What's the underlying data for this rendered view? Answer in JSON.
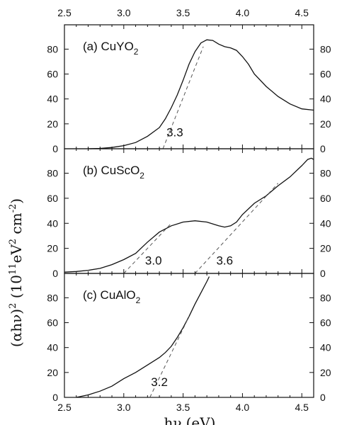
{
  "chart_data": {
    "type": "line",
    "xlabel_main": "hν",
    "xlabel_unit": "(eV)",
    "ylabel_prefix": "(αhν)",
    "ylabel_exp": "2",
    "ylabel_mid": " (10",
    "ylabel_exp2": "11",
    "ylabel_mid2": "eV",
    "ylabel_exp3": "2",
    "ylabel_mid3": " cm",
    "ylabel_exp4": "-2",
    "ylabel_end": ")",
    "xlim": [
      2.5,
      4.6
    ],
    "x_ticks": [
      "2.5",
      "3.0",
      "3.5",
      "4.0",
      "4.5"
    ],
    "x_tick_values": [
      2.5,
      3.0,
      3.5,
      4.0,
      4.5
    ],
    "ylim": [
      0,
      95
    ],
    "y_ticks": [
      "0",
      "20",
      "40",
      "60",
      "80"
    ],
    "y_tick_values": [
      0,
      20,
      40,
      60,
      80
    ],
    "panels": [
      {
        "label_pre": "(a) CuYO",
        "label_sub": "2",
        "curve": [
          [
            2.7,
            0
          ],
          [
            2.8,
            0.3
          ],
          [
            2.9,
            1
          ],
          [
            3.0,
            2.5
          ],
          [
            3.1,
            5
          ],
          [
            3.2,
            10
          ],
          [
            3.3,
            17
          ],
          [
            3.35,
            24
          ],
          [
            3.4,
            33
          ],
          [
            3.45,
            43
          ],
          [
            3.5,
            55
          ],
          [
            3.55,
            68
          ],
          [
            3.6,
            78
          ],
          [
            3.65,
            85
          ],
          [
            3.7,
            87.5
          ],
          [
            3.75,
            87
          ],
          [
            3.8,
            84
          ],
          [
            3.85,
            82
          ],
          [
            3.9,
            81
          ],
          [
            3.95,
            79
          ],
          [
            4.0,
            74
          ],
          [
            4.05,
            68
          ],
          [
            4.1,
            60
          ],
          [
            4.2,
            50
          ],
          [
            4.3,
            42
          ],
          [
            4.4,
            36
          ],
          [
            4.5,
            32
          ],
          [
            4.6,
            31
          ]
        ],
        "tangents": [
          {
            "x": [
              3.33,
              3.67
            ],
            "y": [
              0,
              82
            ],
            "label": "3.3",
            "label_x": 3.43,
            "label_y": 10
          }
        ]
      },
      {
        "label_pre": "(b) CuScO",
        "label_sub": "2",
        "curve": [
          [
            2.5,
            1
          ],
          [
            2.6,
            1.5
          ],
          [
            2.7,
            2.5
          ],
          [
            2.8,
            4
          ],
          [
            2.9,
            7
          ],
          [
            3.0,
            11
          ],
          [
            3.1,
            16
          ],
          [
            3.2,
            25
          ],
          [
            3.3,
            33
          ],
          [
            3.4,
            38
          ],
          [
            3.5,
            41
          ],
          [
            3.6,
            42
          ],
          [
            3.7,
            41
          ],
          [
            3.8,
            38
          ],
          [
            3.85,
            37
          ],
          [
            3.9,
            38
          ],
          [
            3.95,
            41
          ],
          [
            4.0,
            47
          ],
          [
            4.1,
            56
          ],
          [
            4.2,
            62
          ],
          [
            4.3,
            70
          ],
          [
            4.4,
            77
          ],
          [
            4.5,
            86
          ],
          [
            4.55,
            91
          ],
          [
            4.58,
            92
          ],
          [
            4.6,
            91
          ]
        ],
        "tangents": [
          {
            "x": [
              3.0,
              3.4
            ],
            "y": [
              0,
              40
            ],
            "label": "3.0",
            "label_x": 3.25,
            "label_y": 7
          },
          {
            "x": [
              3.6,
              4.3
            ],
            "y": [
              0,
              72
            ],
            "label": "3.6",
            "label_x": 3.85,
            "label_y": 7
          }
        ]
      },
      {
        "label_pre": "(c) CuAlO",
        "label_sub": "2",
        "curve": [
          [
            2.6,
            0
          ],
          [
            2.7,
            2
          ],
          [
            2.8,
            5
          ],
          [
            2.9,
            9
          ],
          [
            3.0,
            15
          ],
          [
            3.1,
            20
          ],
          [
            3.2,
            26
          ],
          [
            3.3,
            32
          ],
          [
            3.35,
            36
          ],
          [
            3.4,
            41
          ],
          [
            3.45,
            48
          ],
          [
            3.5,
            56
          ],
          [
            3.55,
            65
          ],
          [
            3.6,
            75
          ],
          [
            3.65,
            84
          ],
          [
            3.7,
            93
          ],
          [
            3.72,
            97
          ]
        ],
        "tangents": [
          {
            "x": [
              3.22,
              3.55
            ],
            "y": [
              0,
              65
            ],
            "label": "3.2",
            "label_x": 3.3,
            "label_y": 9
          }
        ]
      }
    ]
  }
}
